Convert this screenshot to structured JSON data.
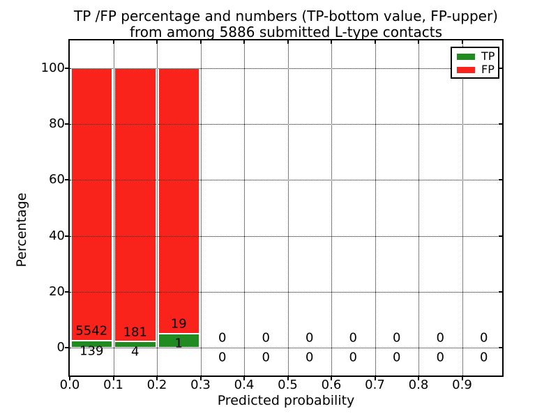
{
  "chart_data": {
    "type": "bar",
    "stacked": true,
    "title_line1": "TP /FP percentage and numbers (TP-bottom value, FP-upper)",
    "title_line2": "from among 5886 submitted L-type contacts",
    "xlabel": "Predicted probability",
    "ylabel": "Percentage",
    "total_submitted": 5886,
    "xlim": [
      0,
      0.992
    ],
    "ylim": [
      -10,
      110
    ],
    "grid": true,
    "legend_position": "upper right",
    "bin_width": 0.1,
    "xtick_labels": [
      "0.0",
      "0.1",
      "0.2",
      "0.3",
      "0.4",
      "0.5",
      "0.6",
      "0.7",
      "0.8",
      "0.9"
    ],
    "xtick_values": [
      0.0,
      0.1,
      0.2,
      0.3,
      0.4,
      0.5,
      0.6,
      0.7,
      0.8,
      0.9
    ],
    "ytick_labels": [
      "0",
      "20",
      "40",
      "60",
      "80",
      "100"
    ],
    "ytick_values": [
      0,
      20,
      40,
      60,
      80,
      100
    ],
    "colors": {
      "tp": "#218b21",
      "fp": "#fa231c",
      "text": "#000000",
      "grid": "#000000"
    },
    "legend": [
      {
        "label": "TP",
        "color": "#218b21"
      },
      {
        "label": "FP",
        "color": "#fa231c"
      }
    ],
    "bins": [
      {
        "range": [
          0.0,
          0.1
        ],
        "tp_count": 139,
        "fp_count": 5542,
        "tp_pct": 2.45,
        "fp_pct": 97.55
      },
      {
        "range": [
          0.1,
          0.2
        ],
        "tp_count": 4,
        "fp_count": 181,
        "tp_pct": 2.16,
        "fp_pct": 97.84
      },
      {
        "range": [
          0.2,
          0.3
        ],
        "tp_count": 1,
        "fp_count": 19,
        "tp_pct": 5.0,
        "fp_pct": 95.0
      },
      {
        "range": [
          0.3,
          0.4
        ],
        "tp_count": 0,
        "fp_count": 0,
        "tp_pct": 0,
        "fp_pct": 0
      },
      {
        "range": [
          0.4,
          0.5
        ],
        "tp_count": 0,
        "fp_count": 0,
        "tp_pct": 0,
        "fp_pct": 0
      },
      {
        "range": [
          0.5,
          0.6
        ],
        "tp_count": 0,
        "fp_count": 0,
        "tp_pct": 0,
        "fp_pct": 0
      },
      {
        "range": [
          0.6,
          0.7
        ],
        "tp_count": 0,
        "fp_count": 0,
        "tp_pct": 0,
        "fp_pct": 0
      },
      {
        "range": [
          0.7,
          0.8
        ],
        "tp_count": 0,
        "fp_count": 0,
        "tp_pct": 0,
        "fp_pct": 0
      },
      {
        "range": [
          0.8,
          0.9
        ],
        "tp_count": 0,
        "fp_count": 0,
        "tp_pct": 0,
        "fp_pct": 0
      },
      {
        "range": [
          0.9,
          1.0
        ],
        "tp_count": 0,
        "fp_count": 0,
        "tp_pct": 0,
        "fp_pct": 0
      }
    ]
  }
}
